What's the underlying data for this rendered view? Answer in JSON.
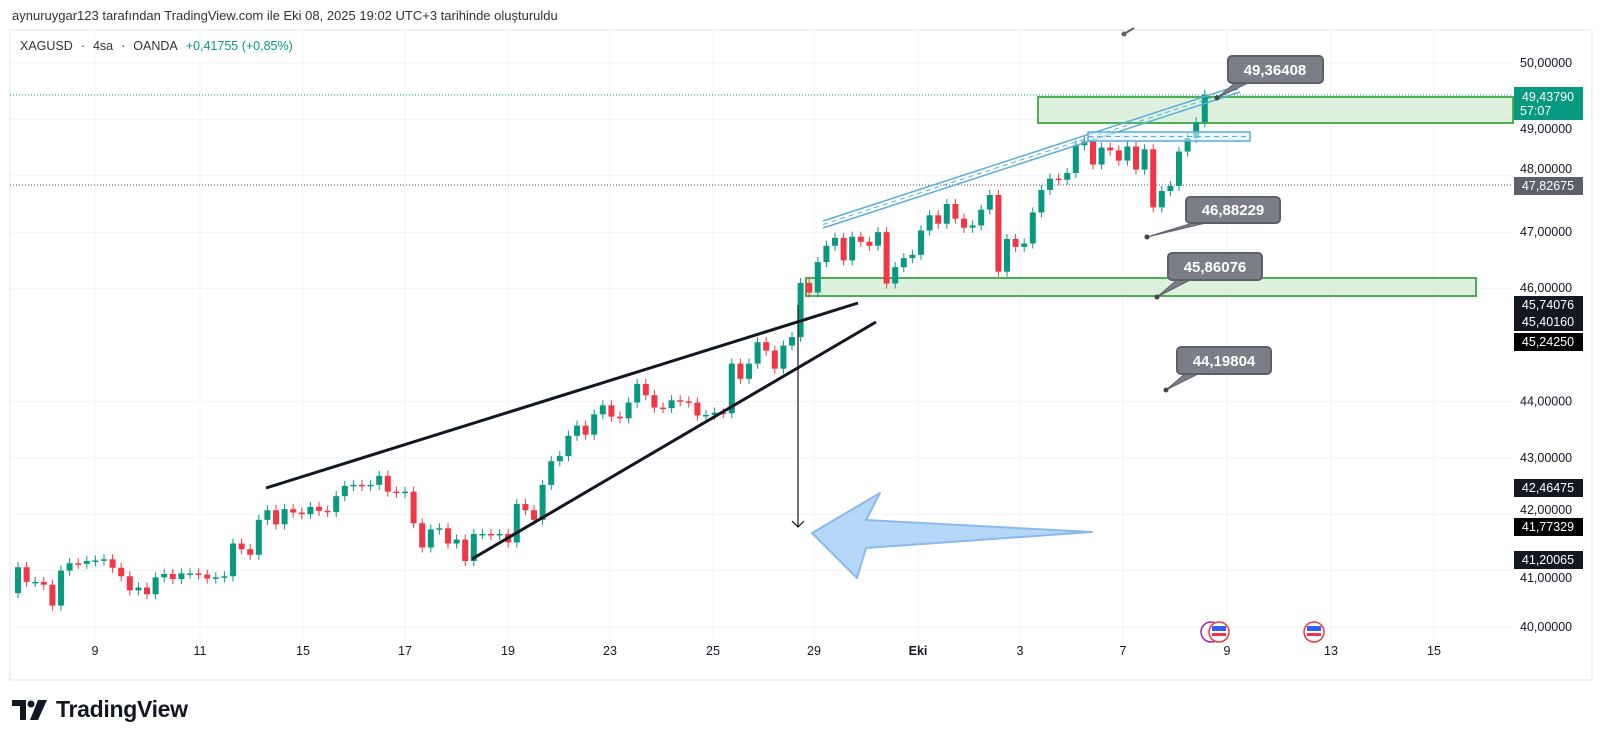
{
  "caption": "aynuruygar123 tarafından TradingView.com ile Eki 08, 2025 19:02 UTC+3 tarihinde oluşturuldu",
  "legend": {
    "symbol": "XAGUSD",
    "interval": "4sa",
    "exchange": "OANDA",
    "sep": "·",
    "change": "+0,41755 (+0,85%)"
  },
  "logo_text": "TradingView",
  "colors": {
    "up": "#089981",
    "down": "#f23645",
    "zone_fill": "#d6eed6",
    "zone_border": "#4caf50",
    "channel": "#5aaed8",
    "callout": "#7b7e87"
  },
  "chart_data": {
    "type": "candlestick",
    "title": "XAGUSD · 4sa · OANDA",
    "ylim": [
      39.4,
      50.6
    ],
    "y_ticks": [
      "50,00000",
      "49,00000",
      "48,00000",
      "47,00000",
      "46,00000",
      "44,00000",
      "43,00000",
      "42,00000",
      "41,00000",
      "40,00000"
    ],
    "y_tick_values": [
      50,
      49,
      48,
      47,
      46,
      44,
      43,
      42,
      41,
      40
    ],
    "x_ticks": [
      "9",
      "11",
      "15",
      "17",
      "19",
      "23",
      "25",
      "29",
      "Eki",
      "3",
      "7",
      "9",
      "13",
      "15"
    ],
    "grid": true,
    "first_open": 40.6,
    "closes": [
      41.06,
      40.8,
      40.8,
      40.75,
      40.38,
      41.0,
      41.13,
      41.12,
      41.17,
      41.18,
      41.2,
      41.05,
      40.9,
      40.65,
      40.7,
      40.58,
      40.88,
      40.94,
      40.85,
      40.95,
      40.95,
      40.93,
      40.86,
      40.88,
      40.9,
      41.48,
      41.38,
      41.28,
      41.9,
      42.07,
      41.82,
      42.09,
      42.03,
      42.0,
      42.13,
      42.06,
      42.04,
      42.32,
      42.5,
      42.52,
      42.5,
      42.52,
      42.68,
      42.4,
      42.38,
      42.4,
      41.84,
      41.41,
      41.73,
      41.75,
      41.48,
      41.55,
      41.17,
      41.65,
      41.65,
      41.63,
      41.65,
      41.5,
      42.18,
      42.07,
      41.9,
      42.52,
      42.94,
      43.03,
      43.39,
      43.57,
      43.41,
      43.77,
      43.93,
      43.73,
      43.7,
      43.98,
      44.31,
      44.11,
      43.89,
      43.88,
      44.02,
      44.0,
      43.98,
      43.75,
      43.76,
      43.8,
      43.79,
      44.67,
      44.4,
      44.67,
      45.05,
      44.9,
      44.58,
      44.99,
      45.14,
      46.1,
      45.93,
      46.47,
      46.76,
      46.9,
      46.5,
      46.92,
      46.83,
      46.76,
      47.0,
      46.09,
      46.38,
      46.54,
      46.6,
      47.03,
      47.3,
      47.15,
      47.5,
      47.24,
      47.08,
      47.12,
      47.4,
      47.66,
      46.3,
      46.88,
      46.74,
      46.8,
      47.35,
      47.75,
      47.95,
      47.93,
      48.05,
      48.54,
      48.61,
      48.2,
      48.5,
      48.45,
      48.27,
      48.52,
      48.11,
      48.47,
      47.44,
      47.73,
      47.82,
      48.43,
      48.67,
      48.95,
      49.44
    ],
    "callouts": [
      "49,36408",
      "46,88229",
      "45,86076",
      "44,19804"
    ],
    "price_labels": {
      "last": {
        "value": "49,43790",
        "countdown": "57:07"
      },
      "prev_close": "47,82675",
      "levels": [
        "45,74076",
        "45,40160",
        "45,24250",
        "42,46475",
        "41,77329",
        "41,20065"
      ]
    },
    "zones": [
      {
        "from": 48.9,
        "to": 49.4
      },
      {
        "from": 45.9,
        "to": 46.2
      }
    ]
  }
}
